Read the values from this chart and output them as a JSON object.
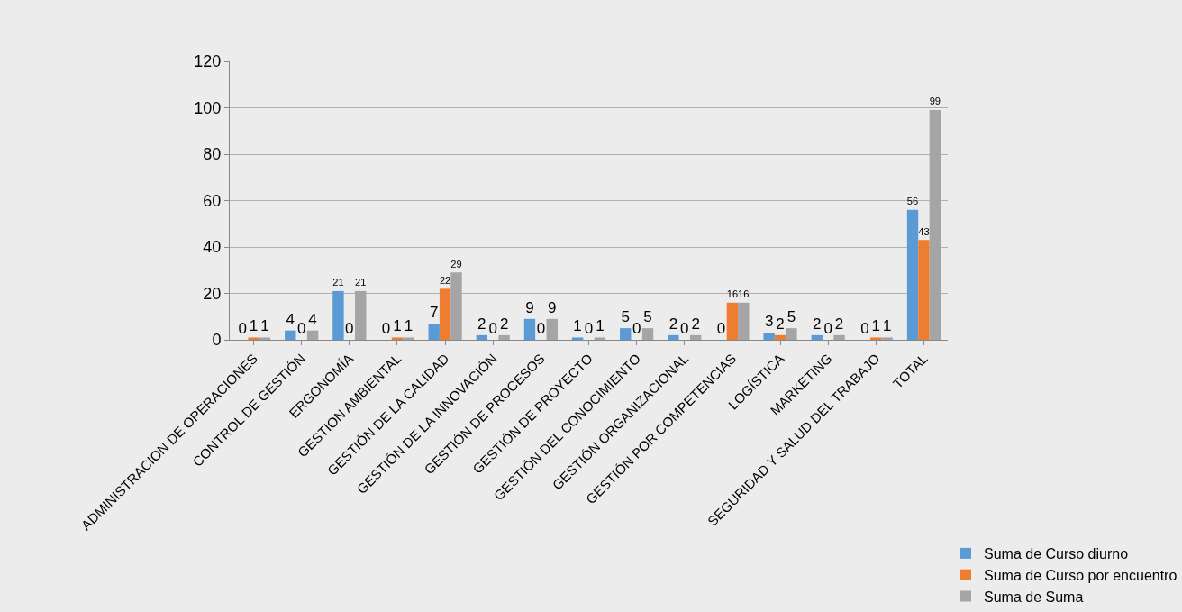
{
  "chart_data": {
    "type": "bar",
    "categories": [
      "ADMINISTRACION DE OPERACIONES",
      "CONTROL DE GESTIÓN",
      "ERGONOMÍA",
      "GESTION AMBIENTAL",
      "GESTIÓN DE LA CALIDAD",
      "GESTIÓN DE LA INNOVACIÓN",
      "GESTIÓN DE PROCESOS",
      "GESTIÓN DE PROYECTO",
      "GESTIÓN DEL CONOCIMIENTO",
      "GESTIÓN ORGANIZACIONAL",
      "GESTIÓN POR COMPETENCIAS",
      "LOGÍSTICA",
      "MARKETING",
      "SEGURIDAD Y SALUD DEL TRABAJO",
      "TOTAL"
    ],
    "series": [
      {
        "name": "Suma de Curso diurno",
        "color": "#5b9bd5",
        "values": [
          0,
          4,
          21,
          0,
          7,
          2,
          9,
          1,
          5,
          2,
          0,
          3,
          2,
          0,
          56
        ]
      },
      {
        "name": "Suma de Curso por encuentro",
        "color": "#ed7d31",
        "values": [
          1,
          0,
          0,
          1,
          22,
          0,
          0,
          0,
          0,
          0,
          16,
          2,
          0,
          1,
          43
        ]
      },
      {
        "name": "Suma de Suma",
        "color": "#a5a5a5",
        "values": [
          1,
          4,
          21,
          1,
          29,
          2,
          9,
          1,
          5,
          2,
          16,
          5,
          2,
          1,
          99
        ]
      }
    ],
    "ylim": [
      0,
      120
    ],
    "yticks": [
      0,
      20,
      40,
      60,
      80,
      100,
      120
    ],
    "grid": "y",
    "legend": "bottom right",
    "data_labels": true
  }
}
